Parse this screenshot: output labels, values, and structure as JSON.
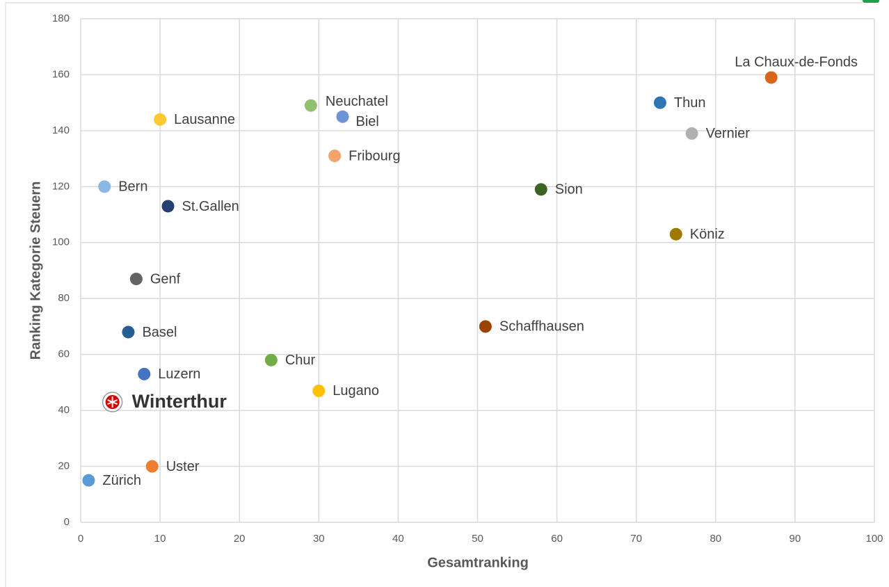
{
  "chart_data": {
    "type": "scatter",
    "x_label": "Gesamtranking",
    "y_label": "Ranking Kategorie Steuern",
    "xlim": [
      0,
      100
    ],
    "xticks": [
      0,
      10,
      20,
      30,
      40,
      50,
      60,
      70,
      80,
      90,
      100
    ],
    "ylim": [
      0,
      180
    ],
    "yticks": [
      0,
      20,
      40,
      60,
      80,
      100,
      120,
      140,
      160,
      180
    ],
    "grid": true,
    "points": [
      {
        "label": "La Chaux-de-Fonds",
        "x": 87,
        "y": 159,
        "color": "#d9651a"
      },
      {
        "label": "Thun",
        "x": 73,
        "y": 150,
        "color": "#2e75b6"
      },
      {
        "label": "Vernier",
        "x": 77,
        "y": 139,
        "color": "#b0b0b0"
      },
      {
        "label": "Neuchatel",
        "x": 29,
        "y": 149,
        "color": "#8fc16e"
      },
      {
        "label": "Biel",
        "x": 33,
        "y": 145,
        "color": "#6f94d6"
      },
      {
        "label": "Lausanne",
        "x": 10,
        "y": 144,
        "color": "#ffc833"
      },
      {
        "label": "Fribourg",
        "x": 32,
        "y": 131,
        "color": "#f4a36b"
      },
      {
        "label": "Bern",
        "x": 3,
        "y": 120,
        "color": "#8ab7e3"
      },
      {
        "label": "Sion",
        "x": 58,
        "y": 119,
        "color": "#3d6326"
      },
      {
        "label": "St.Gallen",
        "x": 11,
        "y": 113,
        "color": "#263f6e"
      },
      {
        "label": "Köniz",
        "x": 75,
        "y": 103,
        "color": "#a07800"
      },
      {
        "label": "Genf",
        "x": 7,
        "y": 87,
        "color": "#636363"
      },
      {
        "label": "Schaffhausen",
        "x": 51,
        "y": 70,
        "color": "#9c4200"
      },
      {
        "label": "Basel",
        "x": 6,
        "y": 68,
        "color": "#255e91"
      },
      {
        "label": "Chur",
        "x": 24,
        "y": 58,
        "color": "#70ad47"
      },
      {
        "label": "Luzern",
        "x": 8,
        "y": 53,
        "color": "#4472c4"
      },
      {
        "label": "Lugano",
        "x": 30,
        "y": 47,
        "color": "#ffc000"
      },
      {
        "label": "Winterthur",
        "x": 4,
        "y": 43,
        "color": "#d40000"
      },
      {
        "label": "Uster",
        "x": 9,
        "y": 20,
        "color": "#ed7d31"
      },
      {
        "label": "Zürich",
        "x": 1,
        "y": 15,
        "color": "#5b9bd5"
      }
    ]
  }
}
